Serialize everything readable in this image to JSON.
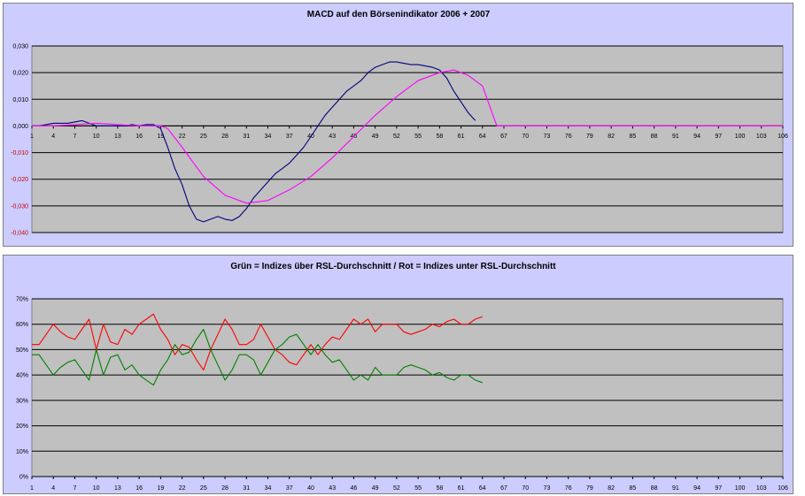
{
  "chart_data": [
    {
      "type": "line",
      "title": "MACD auf den Börsenindikator 2006 + 2007",
      "xlabel": "",
      "ylabel": "",
      "ylim": [
        -0.04,
        0.03
      ],
      "yticks": [
        "0,030",
        "0,020",
        "0,010",
        "0,000",
        "-0,010",
        "-0,020",
        "-0,030",
        "-0,040"
      ],
      "ytick_values": [
        0.03,
        0.02,
        0.01,
        0.0,
        -0.01,
        -0.02,
        -0.03,
        -0.04
      ],
      "xlim": [
        1,
        106
      ],
      "xticks": [
        "1",
        "4",
        "7",
        "10",
        "13",
        "16",
        "19",
        "22",
        "25",
        "28",
        "31",
        "34",
        "37",
        "40",
        "43",
        "46",
        "49",
        "52",
        "55",
        "58",
        "61",
        "64",
        "67",
        "70",
        "73",
        "76",
        "79",
        "82",
        "85",
        "88",
        "91",
        "94",
        "97",
        "100",
        "103",
        "106"
      ],
      "grid": true,
      "legend": "none",
      "colors": {
        "plot_bg": "#c0c0c0",
        "panel_bg": "#ccccff",
        "blue": "#000080",
        "magenta": "#ff00ff"
      },
      "series": [
        {
          "color": "#000080",
          "x": [
            1,
            2,
            3,
            4,
            5,
            6,
            7,
            8,
            9,
            10,
            11,
            12,
            13,
            14,
            15,
            16,
            17,
            18,
            19,
            20,
            21,
            22,
            23,
            24,
            25,
            26,
            27,
            28,
            29,
            30,
            31,
            32,
            33,
            34,
            35,
            36,
            37,
            38,
            39,
            40,
            41,
            42,
            43,
            44,
            45,
            46,
            47,
            48,
            49,
            50,
            51,
            52,
            53,
            54,
            55,
            56,
            57,
            58,
            59,
            60,
            61,
            62,
            63
          ],
          "y": [
            0.0,
            0.0,
            0.0005,
            0.001,
            0.001,
            0.001,
            0.0015,
            0.002,
            0.001,
            0.0,
            0.0,
            0.0,
            0.0,
            0.0,
            0.0005,
            0.0,
            0.0005,
            0.0005,
            -0.001,
            -0.008,
            -0.016,
            -0.022,
            -0.03,
            -0.035,
            -0.036,
            -0.035,
            -0.034,
            -0.035,
            -0.0355,
            -0.034,
            -0.031,
            -0.027,
            -0.024,
            -0.021,
            -0.018,
            -0.016,
            -0.014,
            -0.011,
            -0.008,
            -0.004,
            0.0,
            0.004,
            0.007,
            0.01,
            0.013,
            0.015,
            0.017,
            0.02,
            0.022,
            0.023,
            0.024,
            0.024,
            0.0235,
            0.023,
            0.023,
            0.0225,
            0.022,
            0.021,
            0.018,
            0.013,
            0.009,
            0.005,
            0.002
          ]
        },
        {
          "color": "#ff00ff",
          "x": [
            1,
            4,
            7,
            10,
            13,
            16,
            19,
            20,
            22,
            25,
            28,
            31,
            34,
            37,
            40,
            43,
            46,
            49,
            52,
            55,
            58,
            60,
            62,
            64,
            66,
            70,
            73,
            76,
            79,
            82,
            85,
            88,
            91,
            94,
            97,
            100,
            103,
            106
          ],
          "y": [
            0.0,
            0.0,
            0.0005,
            0.001,
            0.0005,
            0.0,
            0.0,
            -0.001,
            -0.008,
            -0.019,
            -0.026,
            -0.029,
            -0.028,
            -0.024,
            -0.019,
            -0.012,
            -0.004,
            0.004,
            0.011,
            0.017,
            0.02,
            0.021,
            0.019,
            0.015,
            0.0,
            0.0,
            0.0,
            0.0,
            0.0,
            0.0,
            0.0,
            0.0,
            0.0,
            0.0,
            0.0,
            0.0,
            0.0,
            0.0
          ]
        }
      ]
    },
    {
      "type": "line",
      "title": "Grün = Indizes über RSL-Durchschnitt / Rot = Indizes unter RSL-Durchschnitt",
      "xlabel": "",
      "ylabel": "",
      "ylim": [
        0,
        70
      ],
      "yticks": [
        "70%",
        "60%",
        "50%",
        "40%",
        "30%",
        "20%",
        "10%",
        "0%"
      ],
      "ytick_values": [
        70,
        60,
        50,
        40,
        30,
        20,
        10,
        0
      ],
      "xlim": [
        1,
        106
      ],
      "xticks": [
        "1",
        "4",
        "7",
        "10",
        "13",
        "16",
        "19",
        "22",
        "25",
        "28",
        "31",
        "34",
        "37",
        "40",
        "43",
        "46",
        "49",
        "52",
        "55",
        "58",
        "61",
        "64",
        "67",
        "70",
        "73",
        "76",
        "79",
        "82",
        "85",
        "88",
        "91",
        "94",
        "97",
        "100",
        "103",
        "106"
      ],
      "grid": true,
      "legend": "none",
      "colors": {
        "plot_bg": "#c0c0c0",
        "panel_bg": "#ccccff",
        "red": "#ff0000",
        "green": "#008000"
      },
      "series": [
        {
          "color": "#ff0000",
          "x": [
            1,
            2,
            3,
            4,
            5,
            6,
            7,
            8,
            9,
            10,
            11,
            12,
            13,
            14,
            15,
            16,
            17,
            18,
            19,
            20,
            21,
            22,
            23,
            24,
            25,
            26,
            27,
            28,
            29,
            30,
            31,
            32,
            33,
            34,
            35,
            36,
            37,
            38,
            39,
            40,
            41,
            42,
            43,
            44,
            45,
            46,
            47,
            48,
            49,
            50,
            51,
            52,
            53,
            54,
            55,
            56,
            57,
            58,
            59,
            60,
            61,
            62,
            63,
            64
          ],
          "y": [
            52,
            52,
            56,
            60,
            57,
            55,
            54,
            58,
            62,
            50,
            60,
            53,
            52,
            58,
            56,
            60,
            62,
            64,
            58,
            54,
            48,
            52,
            51,
            46,
            42,
            50,
            56,
            62,
            58,
            52,
            52,
            54,
            60,
            55,
            50,
            48,
            45,
            44,
            48,
            52,
            48,
            52,
            55,
            54,
            58,
            62,
            60,
            62,
            57,
            60,
            60,
            60,
            57,
            56,
            57,
            58,
            60,
            59,
            61,
            62,
            60,
            60,
            62,
            63
          ]
        },
        {
          "color": "#008000",
          "x": [
            1,
            2,
            3,
            4,
            5,
            6,
            7,
            8,
            9,
            10,
            11,
            12,
            13,
            14,
            15,
            16,
            17,
            18,
            19,
            20,
            21,
            22,
            23,
            24,
            25,
            26,
            27,
            28,
            29,
            30,
            31,
            32,
            33,
            34,
            35,
            36,
            37,
            38,
            39,
            40,
            41,
            42,
            43,
            44,
            45,
            46,
            47,
            48,
            49,
            50,
            51,
            52,
            53,
            54,
            55,
            56,
            57,
            58,
            59,
            60,
            61,
            62,
            63,
            64
          ],
          "y": [
            48,
            48,
            44,
            40,
            43,
            45,
            46,
            42,
            38,
            50,
            40,
            47,
            48,
            42,
            44,
            40,
            38,
            36,
            42,
            46,
            52,
            48,
            49,
            54,
            58,
            50,
            44,
            38,
            42,
            48,
            48,
            46,
            40,
            45,
            50,
            52,
            55,
            56,
            52,
            48,
            52,
            48,
            45,
            46,
            42,
            38,
            40,
            38,
            43,
            40,
            40,
            40,
            43,
            44,
            43,
            42,
            40,
            41,
            39,
            38,
            40,
            40,
            38,
            37
          ]
        }
      ]
    }
  ]
}
